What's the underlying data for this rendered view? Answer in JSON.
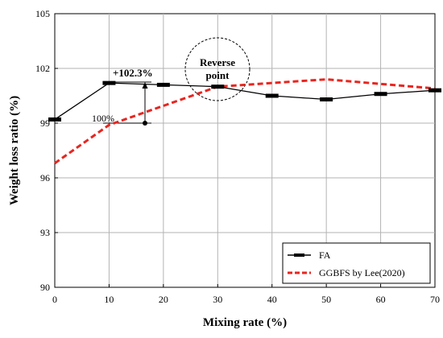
{
  "chart_data": {
    "type": "line",
    "xlabel": "Mixing rate (%)",
    "ylabel": "Weight loss ratio (%)",
    "xlim": [
      0,
      70
    ],
    "ylim": [
      90,
      105
    ],
    "xticks": [
      "0",
      "10",
      "20",
      "30",
      "40",
      "50",
      "60",
      "70"
    ],
    "yticks": [
      "90",
      "93",
      "96",
      "99",
      "102",
      "105"
    ],
    "grid": true,
    "legend_position": "bottom-right",
    "series": [
      {
        "name": "FA",
        "color": "#000000",
        "style": "solid",
        "x": [
          0,
          10,
          20,
          30,
          40,
          50,
          60,
          70
        ],
        "y": [
          99.2,
          101.2,
          101.1,
          101.0,
          100.5,
          100.3,
          100.6,
          100.8
        ]
      },
      {
        "name": "GGBFS by Lee(2020)",
        "color": "#e8251f",
        "style": "dashed",
        "x": [
          0,
          10,
          30,
          50,
          70
        ],
        "y": [
          96.8,
          98.9,
          101.0,
          101.4,
          100.9
        ]
      }
    ],
    "annotations": {
      "increase_label": "+102.3%",
      "base_label": "100%",
      "reverse_label_line1": "Reverse",
      "reverse_label_line2": "point"
    }
  }
}
